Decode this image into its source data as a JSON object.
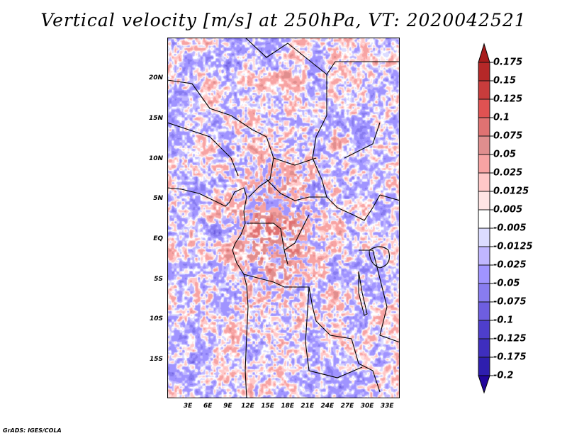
{
  "title": "Vertical velocity [m/s] at 250hPa, VT: 2020042521",
  "credit": "GrADS: IGES/COLA",
  "chart_data": {
    "type": "heatmap",
    "title": "Vertical velocity [m/s] at 250hPa, VT: 2020042521",
    "xlabel": "",
    "ylabel": "",
    "lon_range": [
      0,
      35
    ],
    "lat_range": [
      -20,
      25
    ],
    "lat_ticks": [
      {
        "v": 20,
        "label": "20N"
      },
      {
        "v": 15,
        "label": "15N"
      },
      {
        "v": 10,
        "label": "10N"
      },
      {
        "v": 5,
        "label": "5N"
      },
      {
        "v": 0,
        "label": "EQ"
      },
      {
        "v": -5,
        "label": "5S"
      },
      {
        "v": -10,
        "label": "10S"
      },
      {
        "v": -15,
        "label": "15S"
      }
    ],
    "lon_ticks": [
      {
        "v": 3,
        "label": "3E"
      },
      {
        "v": 6,
        "label": "6E"
      },
      {
        "v": 9,
        "label": "9E"
      },
      {
        "v": 12,
        "label": "12E"
      },
      {
        "v": 15,
        "label": "15E"
      },
      {
        "v": 18,
        "label": "18E"
      },
      {
        "v": 21,
        "label": "21E"
      },
      {
        "v": 24,
        "label": "24E"
      },
      {
        "v": 27,
        "label": "27E"
      },
      {
        "v": 30,
        "label": "30E"
      },
      {
        "v": 33,
        "label": "33E"
      }
    ],
    "colorbar": {
      "labels": [
        "0.175",
        "0.15",
        "0.125",
        "0.1",
        "0.075",
        "0.05",
        "0.025",
        "0.0125",
        "0.005",
        "-0.005",
        "-0.0125",
        "-0.025",
        "-0.05",
        "-0.075",
        "-0.1",
        "-0.125",
        "-0.175",
        "-0.2"
      ],
      "colors": [
        "#a81c1c",
        "#b52828",
        "#c83c3c",
        "#e05252",
        "#e07272",
        "#e08e8e",
        "#f7a3a3",
        "#ffc8c8",
        "#ffe4e4",
        "#ffffff",
        "#dcdcff",
        "#c0b6ff",
        "#a094ff",
        "#887cf0",
        "#6e5ee0",
        "#4e3ecc",
        "#3e2ebe",
        "#2e1eae",
        "#22069c"
      ]
    },
    "grid": false
  }
}
